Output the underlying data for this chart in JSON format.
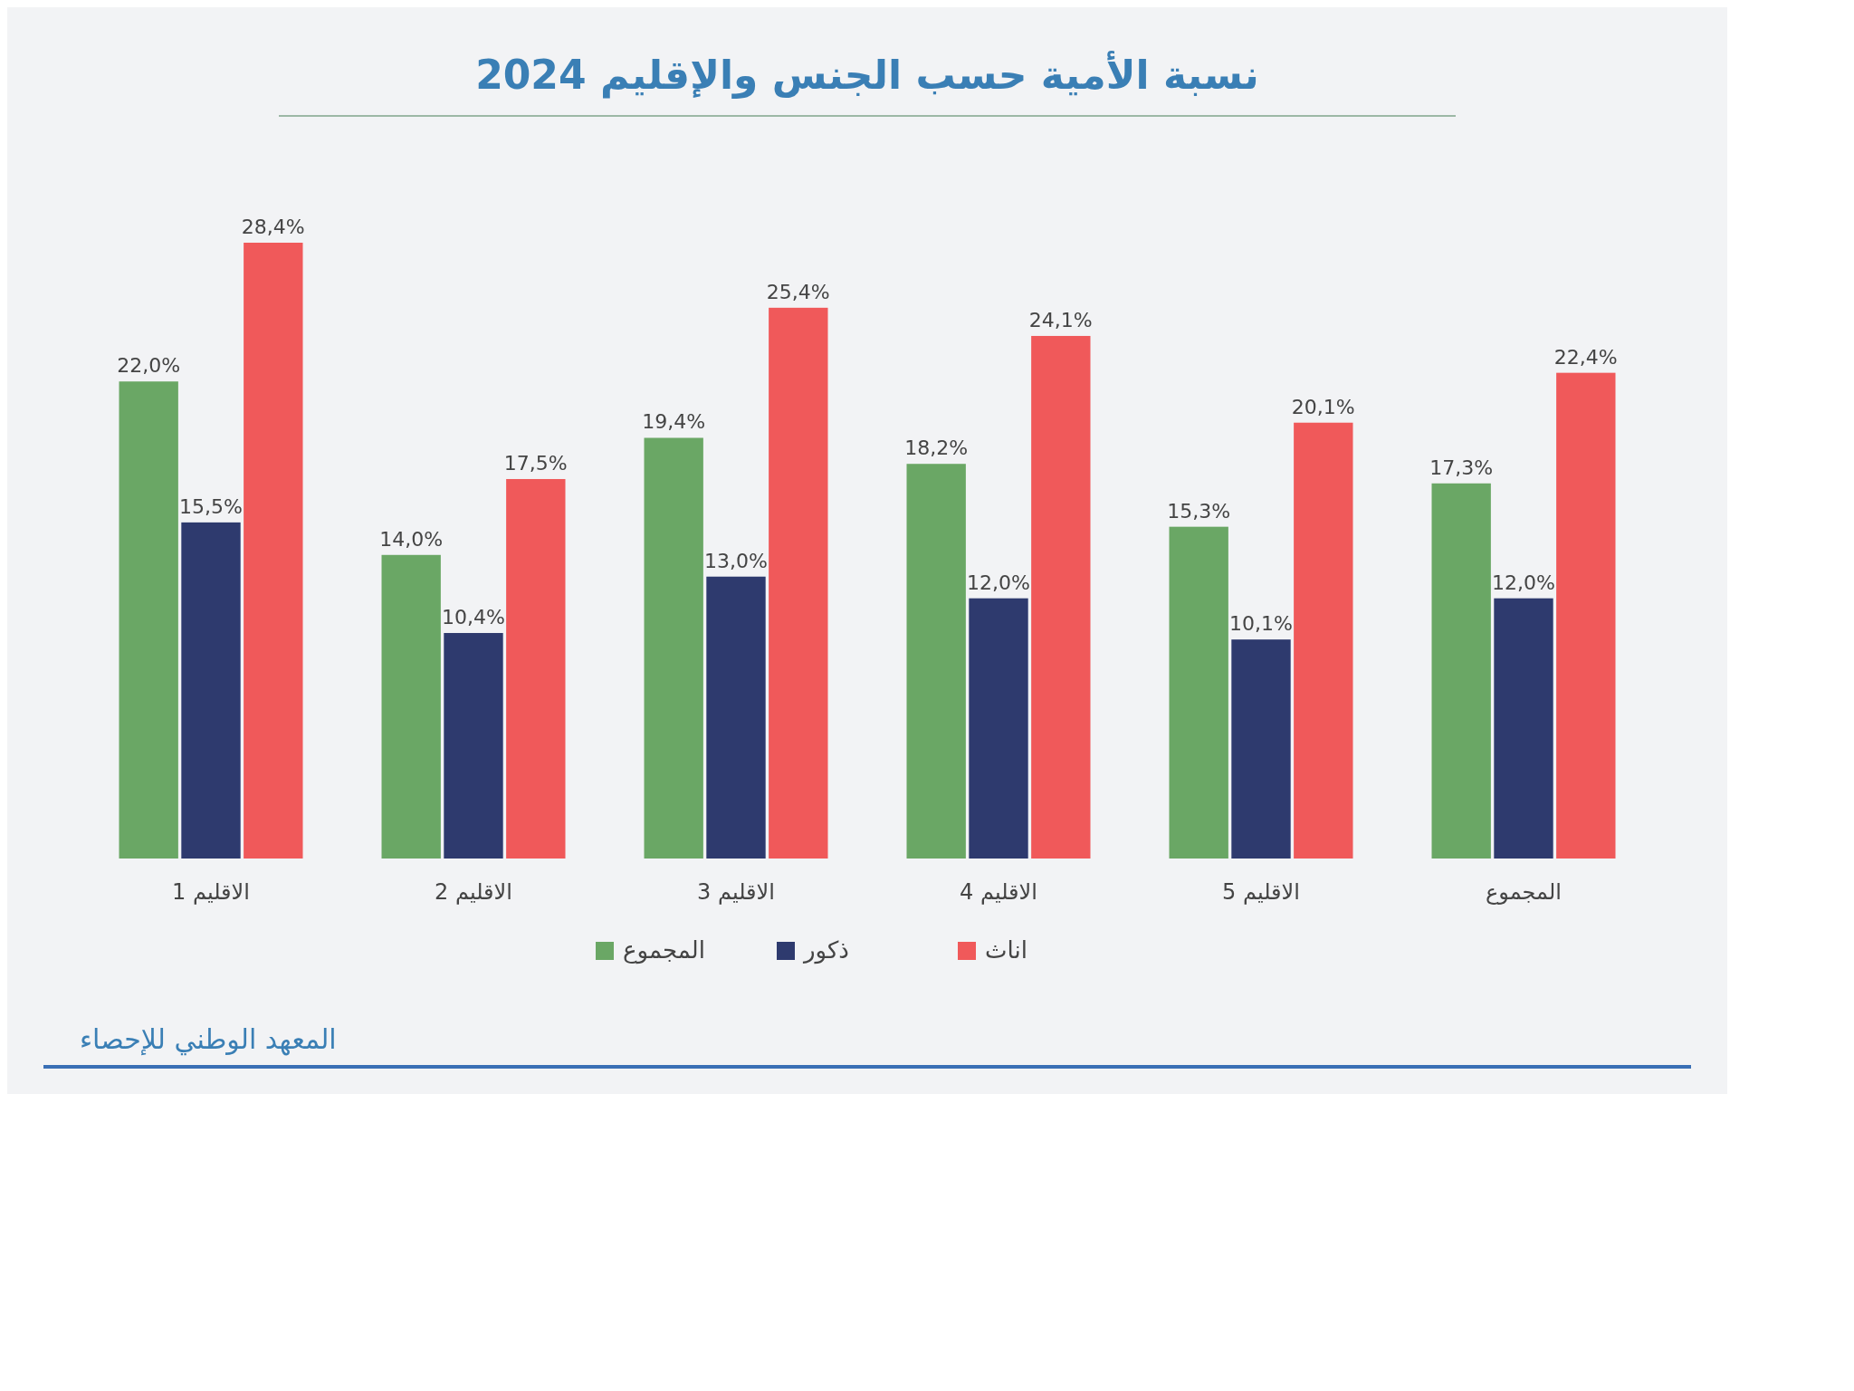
{
  "chart_data": {
    "type": "bar",
    "title": "نسبة الأمية حسب الجنس والإقليم 2024",
    "categories": [
      "الاقليم 1",
      "الاقليم 2",
      "الاقليم 3",
      "الاقليم 4",
      "الاقليم 5",
      "المجموع"
    ],
    "series": [
      {
        "name": "المجموع",
        "color": "#6aa765",
        "values": [
          22.0,
          14.0,
          19.4,
          18.2,
          15.3,
          17.3
        ],
        "value_labels": [
          "22,0%",
          "14,0%",
          "19,4%",
          "18,2%",
          "15,3%",
          "17,3%"
        ]
      },
      {
        "name": "ذكور",
        "color": "#2e3a6e",
        "values": [
          15.5,
          10.4,
          13.0,
          12.0,
          10.1,
          12.0
        ],
        "value_labels": [
          "15,5%",
          "10,4%",
          "13,0%",
          "12,0%",
          "10,1%",
          "12,0%"
        ]
      },
      {
        "name": "اناث",
        "color": "#f0595a",
        "values": [
          28.4,
          17.5,
          25.4,
          24.1,
          20.1,
          22.4
        ],
        "value_labels": [
          "28,4%",
          "17,5%",
          "25,4%",
          "24,1%",
          "20,1%",
          "22,4%"
        ]
      }
    ],
    "legend": "bottom",
    "grid": false,
    "annotations": [
      "المعهد الوطني للإحصاء"
    ]
  }
}
